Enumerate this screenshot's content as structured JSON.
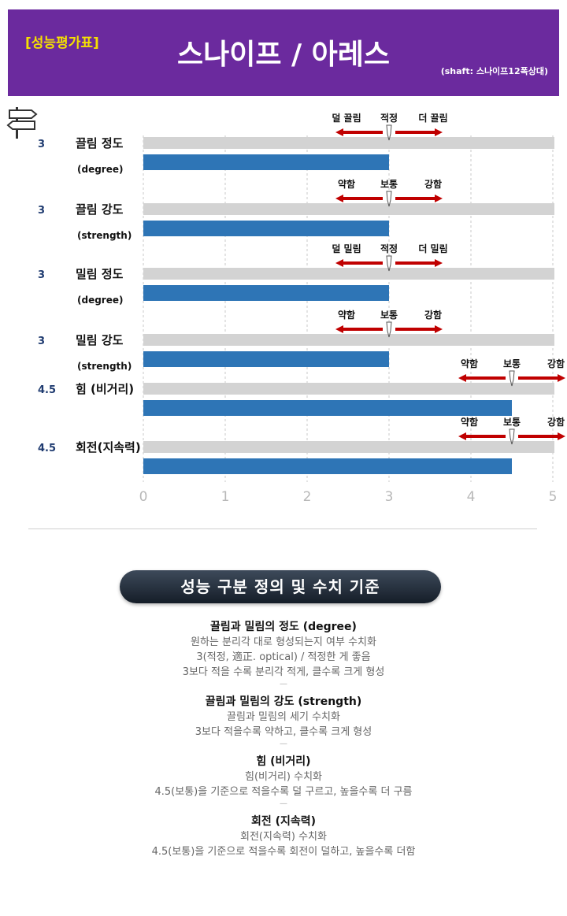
{
  "header": {
    "tag": "[성능평가표]",
    "title": "스나이프 / 아레스",
    "shaft": "(shaft: 스나이프12폭상대)",
    "bg_color": "#6b2a9e",
    "tag_color": "#f5e000"
  },
  "signpost_icon": "signpost-icon",
  "chart_data": {
    "type": "bar",
    "orientation": "horizontal",
    "x_ticks": [
      "0",
      "1",
      "2",
      "3",
      "4",
      "5"
    ],
    "xlim": [
      0,
      5
    ],
    "bar_color": "#2e75b6",
    "track_color": "#d3d3d3",
    "arrow_color": "#c00000",
    "rows": [
      {
        "value": 3,
        "value_label": "3",
        "label_ko": "끌림 정도",
        "label_en": "(degree)",
        "scale": {
          "center": 3,
          "left": "덜 끌림",
          "mid": "적정",
          "right": "더 끌림"
        }
      },
      {
        "value": 3,
        "value_label": "3",
        "label_ko": "끌림 강도",
        "label_en": "(strength)",
        "scale": {
          "center": 3,
          "left": "약함",
          "mid": "보통",
          "right": "강함"
        }
      },
      {
        "value": 3,
        "value_label": "3",
        "label_ko": "밀림 정도",
        "label_en": "(degree)",
        "scale": {
          "center": 3,
          "left": "덜 밀림",
          "mid": "적정",
          "right": "더 밀림"
        }
      },
      {
        "value": 3,
        "value_label": "3",
        "label_ko": "밀림 강도",
        "label_en": "(strength)",
        "scale": {
          "center": 3,
          "left": "약함",
          "mid": "보통",
          "right": "강함"
        }
      },
      {
        "value": 4.5,
        "value_label": "4.5",
        "label_ko": "힘 (비거리)",
        "label_en": "",
        "scale": {
          "center": 4.5,
          "left": "약함",
          "mid": "보통",
          "right": "강함"
        }
      },
      {
        "value": 4.5,
        "value_label": "4.5",
        "label_ko": "회전(지속력)",
        "label_en": "",
        "scale": {
          "center": 4.5,
          "left": "약함",
          "mid": "보통",
          "right": "강함"
        }
      }
    ]
  },
  "definitions": {
    "banner": "성능 구분 정의 및 수치 기준",
    "sections": [
      {
        "title": "끌림과 밀림의 정도 (degree)",
        "lines": [
          "원하는 분리각 대로 형성되는지 여부 수치화",
          "3(적정, 適正. optical) / 적정한 게 좋음",
          "3보다 적을 수록 분리각 적게, 클수록 크게 형성"
        ]
      },
      {
        "title": "끌림과 밀림의 강도 (strength)",
        "lines": [
          "끌림과 밀림의 세기 수치화",
          "3보다 적을수록 약하고, 클수록 크게 형성"
        ]
      },
      {
        "title": "힘 (비거리)",
        "lines": [
          "힘(비거리) 수치화",
          "4.5(보통)을 기준으로 적을수록 덜 구르고, 높을수록 더 구름"
        ]
      },
      {
        "title": "회전 (지속력)",
        "lines": [
          "회전(지속력) 수치화",
          "4.5(보통)을 기준으로 적을수록 회전이 덜하고, 높을수록 더함"
        ]
      }
    ]
  }
}
